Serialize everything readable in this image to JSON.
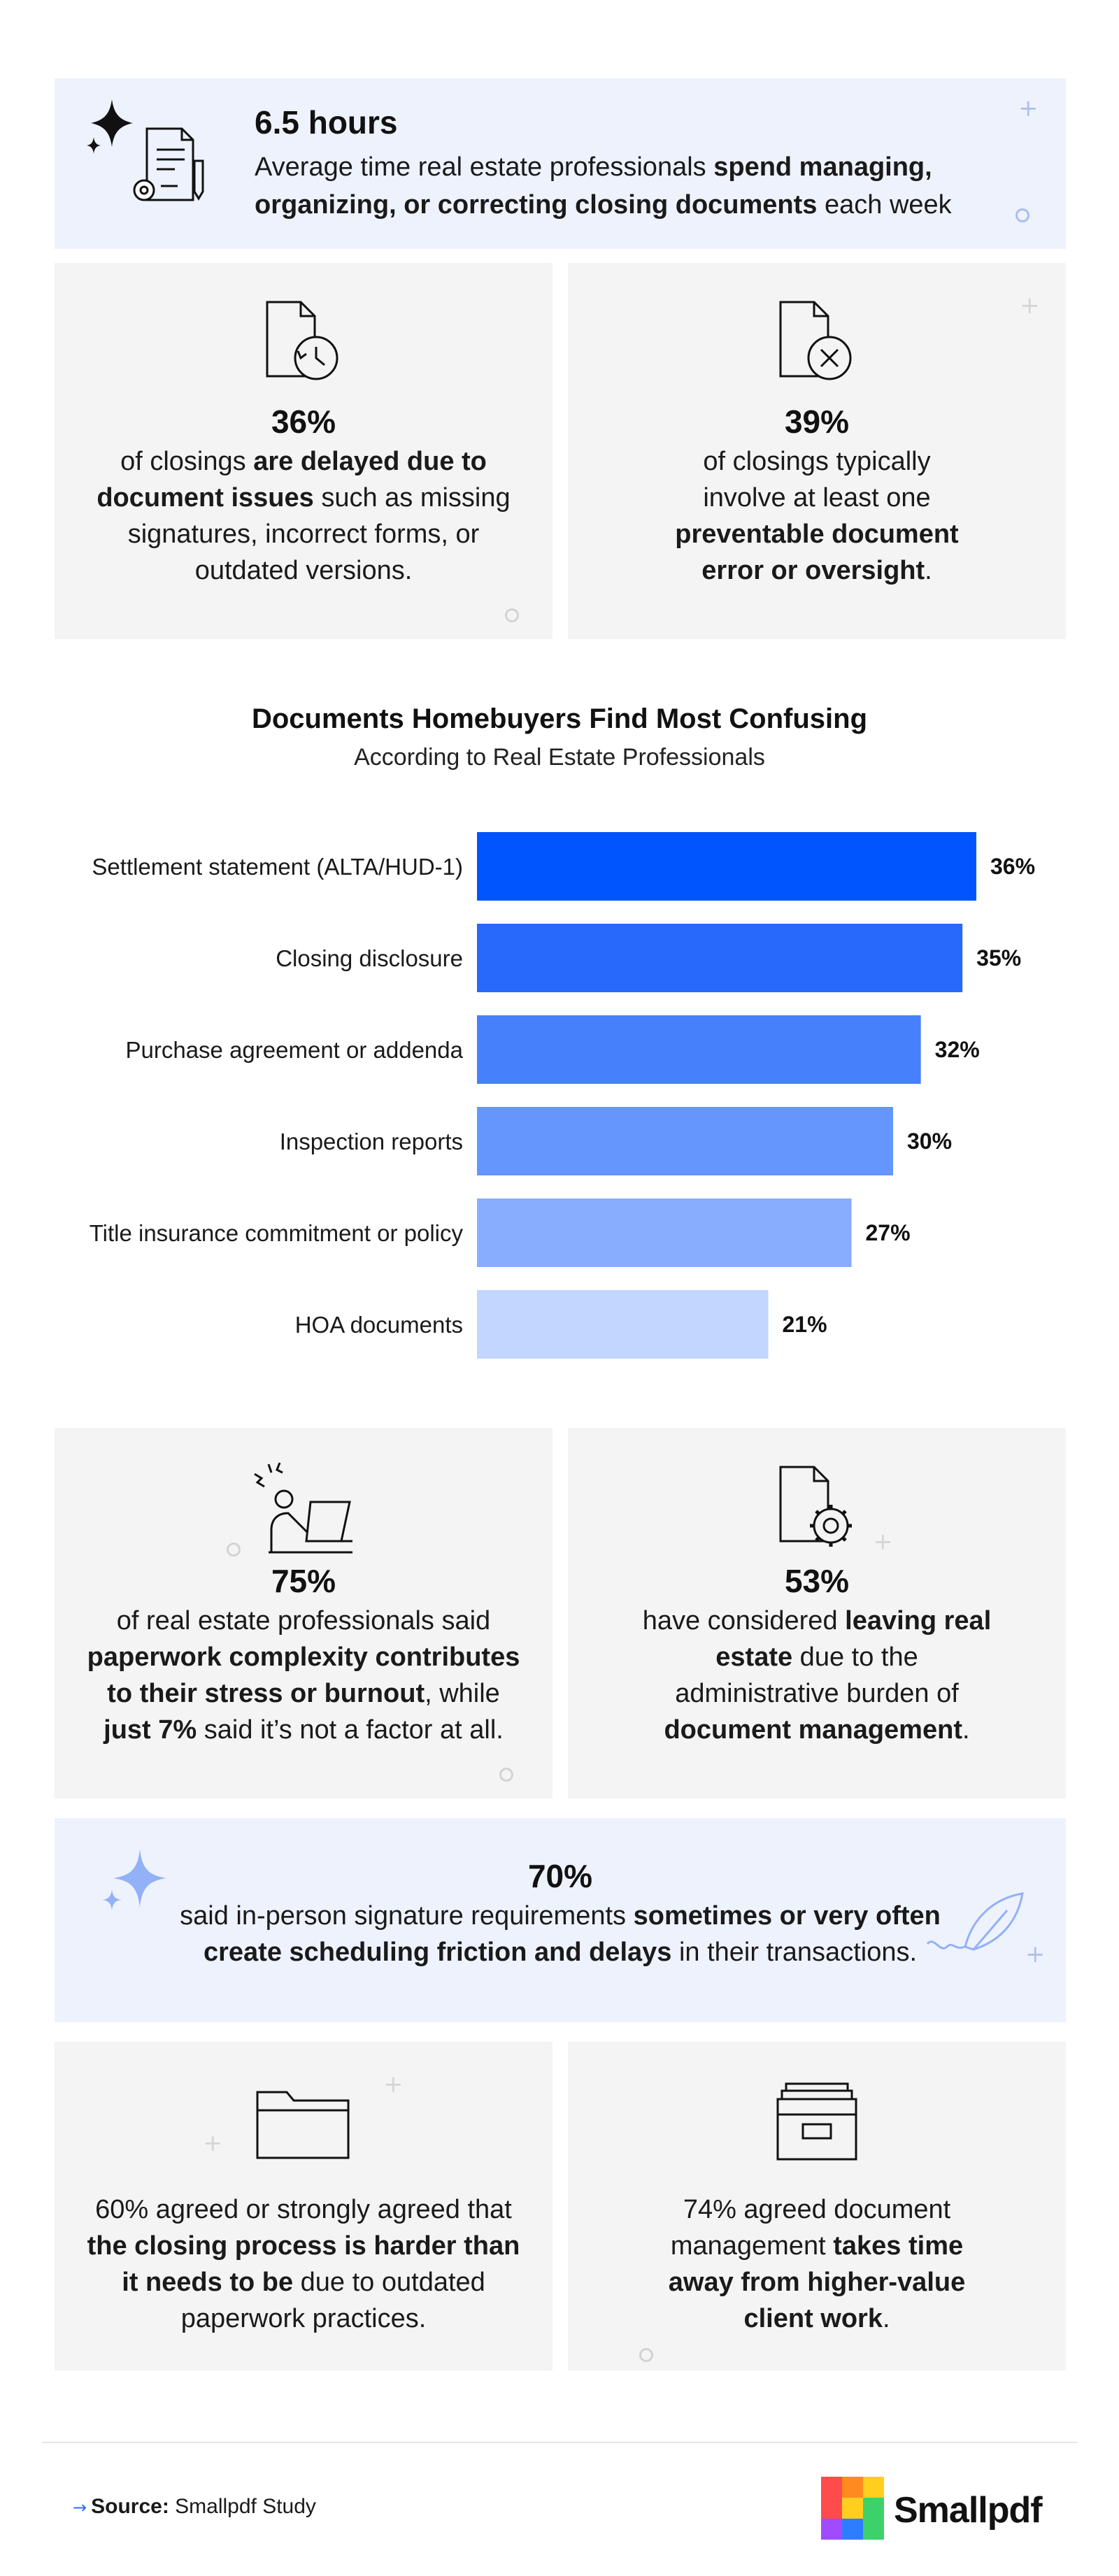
{
  "top_stat": {
    "number": "6.5 hours",
    "text_1": "Average time real estate professionals ",
    "bold_1": "spend managing,",
    "bold_2": "organizing, or correcting closing documents",
    "text_2": " each week"
  },
  "stat_36": {
    "number": "36%",
    "text_1": "of closings ",
    "bold_1": "are delayed due to",
    "bold_2": "document issues",
    "text_2": " such as missing",
    "text_3": "signatures, incorrect forms, or",
    "text_4": "outdated versions."
  },
  "stat_39": {
    "number": "39%",
    "text_1": "of closings typically",
    "text_2": "involve at least one",
    "bold_1": "preventable document",
    "bold_2": "error or oversight",
    "text_3": "."
  },
  "chart_data": {
    "type": "bar",
    "orientation": "horizontal",
    "title": "Documents Homebuyers Find Most Confusing",
    "subtitle": "According to Real Estate Professionals",
    "categories": [
      "Settlement statement (ALTA/HUD-1)",
      "Closing disclosure",
      "Purchase agreement or addenda",
      "Inspection reports",
      "Title insurance commitment or policy",
      "HOA documents"
    ],
    "values": [
      36,
      35,
      32,
      30,
      27,
      21
    ],
    "value_labels": [
      "36%",
      "35%",
      "32%",
      "30%",
      "27%",
      "21%"
    ],
    "colors": [
      "#0055ff",
      "#2868fa",
      "#4680fb",
      "#6496fd",
      "#88adff",
      "#c3d6ff"
    ],
    "xlim": [
      0,
      36
    ],
    "grid": false,
    "legend": "none"
  },
  "stat_75": {
    "number": "75%",
    "text_1": "of real estate professionals said",
    "bold_1": "paperwork complexity contributes",
    "bold_2": "to their stress or burnout",
    "text_2": ", while",
    "bold_3": "just 7%",
    "text_3": " said it’s not a factor at all."
  },
  "stat_53": {
    "number": "53%",
    "text_1": "have considered ",
    "bold_1": "leaving real",
    "bold_2": "estate",
    "text_2": " due to the",
    "text_3": "administrative burden of",
    "bold_3": "document management",
    "text_4": "."
  },
  "stat_70": {
    "number": "70%",
    "text_1": "said in-person signature requirements ",
    "bold_1": "sometimes or very often",
    "bold_2": "create scheduling friction and delays",
    "text_2": " in their transactions."
  },
  "stat_60": {
    "text_1": "60% agreed or strongly agreed that",
    "bold_1": "the closing process is harder than",
    "bold_2": "it needs to be",
    "text_2": " due to outdated",
    "text_3": "paperwork practices."
  },
  "stat_74": {
    "text_1": "74% agreed document",
    "text_2": "management ",
    "bold_1": "takes time",
    "bold_2": "away from higher-value",
    "bold_3": "client work",
    "text_3": "."
  },
  "footer": {
    "arrow": "→",
    "source_label": "Source:",
    "source_value": " Smallpdf Study",
    "brand": "Smallpdf",
    "brand_colors": [
      "#ff4b4b",
      "#ff8a1f",
      "#ffce1f",
      "#3dd16b",
      "#2f7dff",
      "#a14bff"
    ]
  }
}
